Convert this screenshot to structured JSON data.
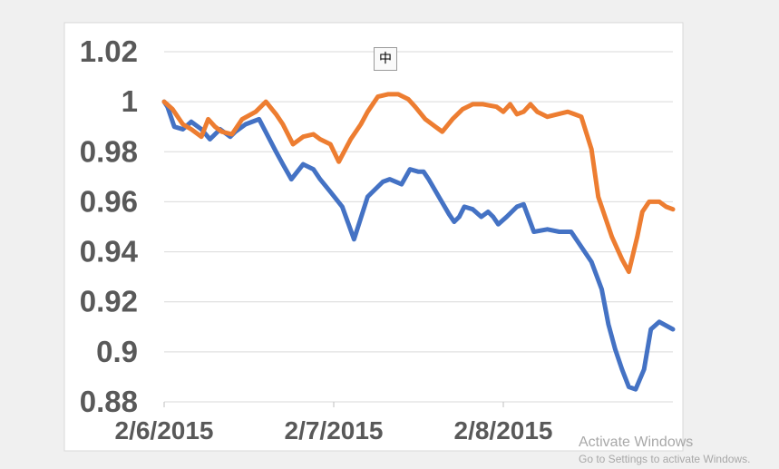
{
  "chart_data": {
    "type": "line",
    "title": "",
    "xlabel": "",
    "ylabel": "",
    "ylim": [
      0.88,
      1.02
    ],
    "y_ticks": [
      "0.88",
      "0.9",
      "0.92",
      "0.94",
      "0.96",
      "0.98",
      "1",
      "1.02"
    ],
    "y_tick_values": [
      0.88,
      0.9,
      0.92,
      0.94,
      0.96,
      0.98,
      1.0,
      1.02
    ],
    "x_ticks": [
      "2/6/2015",
      "2/7/2015",
      "2/8/2015"
    ],
    "x_tick_values": [
      0,
      1,
      2
    ],
    "xlim": [
      0,
      3
    ],
    "grid": true,
    "legend": "none",
    "series": [
      {
        "color": "#4472c4",
        "x": [
          0.0,
          0.02,
          0.06,
          0.11,
          0.16,
          0.22,
          0.27,
          0.33,
          0.39,
          0.42,
          0.48,
          0.56,
          0.66,
          0.7,
          0.75,
          0.82,
          0.88,
          0.92,
          0.98,
          1.05,
          1.12,
          1.2,
          1.26,
          1.29,
          1.33,
          1.4,
          1.45,
          1.5,
          1.53,
          1.56,
          1.62,
          1.68,
          1.71,
          1.74,
          1.77,
          1.82,
          1.87,
          1.91,
          1.94,
          1.97,
          2.02,
          2.08,
          2.12,
          2.18,
          2.26,
          2.33,
          2.4,
          2.52,
          2.58,
          2.62,
          2.66,
          2.7,
          2.74,
          2.78,
          2.83,
          2.87,
          2.92,
          3.0
        ],
        "values": [
          1.0,
          0.998,
          0.99,
          0.989,
          0.992,
          0.989,
          0.985,
          0.989,
          0.986,
          0.988,
          0.991,
          0.993,
          0.98,
          0.975,
          0.969,
          0.975,
          0.973,
          0.969,
          0.964,
          0.958,
          0.945,
          0.962,
          0.966,
          0.968,
          0.969,
          0.967,
          0.973,
          0.972,
          0.972,
          0.969,
          0.962,
          0.955,
          0.952,
          0.954,
          0.958,
          0.957,
          0.954,
          0.956,
          0.954,
          0.951,
          0.954,
          0.958,
          0.959,
          0.948,
          0.949,
          0.948,
          0.948,
          0.936,
          0.925,
          0.911,
          0.901,
          0.893,
          0.886,
          0.885,
          0.893,
          0.909,
          0.912,
          0.909
        ]
      },
      {
        "color": "#ed7d31",
        "x": [
          0.0,
          0.05,
          0.11,
          0.16,
          0.22,
          0.26,
          0.3,
          0.34,
          0.4,
          0.46,
          0.54,
          0.6,
          0.66,
          0.7,
          0.76,
          0.82,
          0.88,
          0.92,
          0.98,
          1.03,
          1.1,
          1.16,
          1.2,
          1.26,
          1.32,
          1.38,
          1.44,
          1.48,
          1.54,
          1.6,
          1.64,
          1.7,
          1.76,
          1.82,
          1.88,
          1.96,
          2.0,
          2.04,
          2.08,
          2.12,
          2.16,
          2.2,
          2.26,
          2.32,
          2.38,
          2.42,
          2.46,
          2.52,
          2.56,
          2.6,
          2.64,
          2.7,
          2.74,
          2.79,
          2.82,
          2.86,
          2.92,
          2.96,
          3.0
        ],
        "values": [
          1.0,
          0.997,
          0.991,
          0.989,
          0.986,
          0.993,
          0.99,
          0.988,
          0.987,
          0.993,
          0.996,
          1.0,
          0.995,
          0.991,
          0.983,
          0.986,
          0.987,
          0.985,
          0.983,
          0.976,
          0.985,
          0.991,
          0.996,
          1.002,
          1.003,
          1.003,
          1.001,
          0.998,
          0.993,
          0.99,
          0.988,
          0.993,
          0.997,
          0.999,
          0.999,
          0.998,
          0.996,
          0.999,
          0.995,
          0.996,
          0.999,
          0.996,
          0.994,
          0.995,
          0.996,
          0.995,
          0.994,
          0.981,
          0.962,
          0.954,
          0.946,
          0.937,
          0.932,
          0.946,
          0.956,
          0.96,
          0.96,
          0.958,
          0.957
        ]
      }
    ]
  },
  "ime_indicator": {
    "label": "中"
  },
  "watermark": {
    "title": "Activate Windows",
    "subtitle": "Go to Settings to activate Windows."
  }
}
